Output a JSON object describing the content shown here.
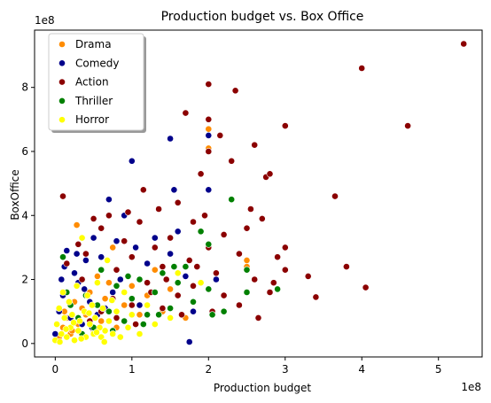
{
  "chart_data": {
    "type": "scatter",
    "title": "Production budget vs. Box Office",
    "xlabel": "Production budget",
    "ylabel": "BoxOffice",
    "x_offset_text": "1e8",
    "y_offset_text": "1e8",
    "xlim": [
      -0.27,
      5.57
    ],
    "ylim": [
      -0.42,
      9.79
    ],
    "x_ticks": [
      0,
      1,
      2,
      3,
      4,
      5
    ],
    "y_ticks": [
      0,
      2,
      4,
      6,
      8
    ],
    "x_tick_labels": [
      "0",
      "1",
      "2",
      "3",
      "4",
      "5"
    ],
    "y_tick_labels": [
      "0",
      "2",
      "4",
      "6",
      "8"
    ],
    "grid": false,
    "legend_position": "upper-left",
    "series": [
      {
        "name": "Drama",
        "color": "#ff8c00",
        "points": [
          [
            0.05,
            0.2
          ],
          [
            0.1,
            0.5
          ],
          [
            0.15,
            0.8
          ],
          [
            0.2,
            0.3
          ],
          [
            0.25,
            1.3
          ],
          [
            0.28,
            3.7
          ],
          [
            0.3,
            0.6
          ],
          [
            0.35,
            1.1
          ],
          [
            0.4,
            0.9
          ],
          [
            0.45,
            1.6
          ],
          [
            0.5,
            0.4
          ],
          [
            0.55,
            2.1
          ],
          [
            0.6,
            0.7
          ],
          [
            0.65,
            1.4
          ],
          [
            0.7,
            1.9
          ],
          [
            0.75,
            3.0
          ],
          [
            0.8,
            0.5
          ],
          [
            0.9,
            1.2
          ],
          [
            1.0,
            1.8
          ],
          [
            1.1,
            0.9
          ],
          [
            1.2,
            1.5
          ],
          [
            1.3,
            2.3
          ],
          [
            1.4,
            1.0
          ],
          [
            1.5,
            1.7
          ],
          [
            1.7,
            0.8
          ],
          [
            1.8,
            1.3
          ],
          [
            2.0,
            6.7
          ],
          [
            2.0,
            6.1
          ],
          [
            2.5,
            2.6
          ],
          [
            2.5,
            2.4
          ],
          [
            0.12,
            1.0
          ],
          [
            0.22,
            0.4
          ]
        ]
      },
      {
        "name": "Comedy",
        "color": "#00008b",
        "points": [
          [
            0.0,
            0.3
          ],
          [
            0.05,
            1.0
          ],
          [
            0.1,
            1.5
          ],
          [
            0.12,
            2.4
          ],
          [
            0.15,
            2.9
          ],
          [
            0.2,
            0.8
          ],
          [
            0.25,
            2.2
          ],
          [
            0.3,
            1.9
          ],
          [
            0.35,
            0.6
          ],
          [
            0.4,
            2.6
          ],
          [
            0.45,
            1.3
          ],
          [
            0.5,
            3.3
          ],
          [
            0.55,
            0.9
          ],
          [
            0.6,
            2.7
          ],
          [
            0.7,
            4.5
          ],
          [
            0.75,
            1.6
          ],
          [
            0.8,
            3.2
          ],
          [
            0.85,
            2.0
          ],
          [
            0.9,
            4.0
          ],
          [
            1.0,
            5.7
          ],
          [
            1.05,
            3.0
          ],
          [
            1.1,
            1.2
          ],
          [
            1.2,
            2.5
          ],
          [
            1.3,
            3.3
          ],
          [
            1.5,
            6.4
          ],
          [
            1.5,
            2.8
          ],
          [
            1.55,
            4.8
          ],
          [
            1.6,
            3.5
          ],
          [
            1.7,
            2.1
          ],
          [
            1.75,
            0.05
          ],
          [
            1.8,
            1.0
          ],
          [
            2.0,
            6.5
          ],
          [
            2.0,
            4.8
          ],
          [
            2.1,
            2.0
          ],
          [
            0.08,
            2.0
          ],
          [
            0.18,
            1.3
          ],
          [
            0.28,
            2.8
          ],
          [
            0.38,
            1.7
          ],
          [
            0.48,
            0.5
          ],
          [
            0.65,
            1.1
          ]
        ]
      },
      {
        "name": "Action",
        "color": "#8b0000",
        "points": [
          [
            0.1,
            4.6
          ],
          [
            0.15,
            2.5
          ],
          [
            0.3,
            3.1
          ],
          [
            0.35,
            2.0
          ],
          [
            0.4,
            2.8
          ],
          [
            0.5,
            3.9
          ],
          [
            0.6,
            3.6
          ],
          [
            0.7,
            4.0
          ],
          [
            0.8,
            2.3
          ],
          [
            0.9,
            3.2
          ],
          [
            0.95,
            4.1
          ],
          [
            1.0,
            2.7
          ],
          [
            1.1,
            3.8
          ],
          [
            1.15,
            4.8
          ],
          [
            1.2,
            1.9
          ],
          [
            1.3,
            3.0
          ],
          [
            1.35,
            4.2
          ],
          [
            1.4,
            2.4
          ],
          [
            1.5,
            3.3
          ],
          [
            1.6,
            4.4
          ],
          [
            1.7,
            7.2
          ],
          [
            1.75,
            2.6
          ],
          [
            1.8,
            3.8
          ],
          [
            1.9,
            5.3
          ],
          [
            1.95,
            4.0
          ],
          [
            2.0,
            8.1
          ],
          [
            2.0,
            7.0
          ],
          [
            2.0,
            6.0
          ],
          [
            2.0,
            3.0
          ],
          [
            2.1,
            2.2
          ],
          [
            2.15,
            6.5
          ],
          [
            2.2,
            3.4
          ],
          [
            2.3,
            5.7
          ],
          [
            2.35,
            7.9
          ],
          [
            2.4,
            2.8
          ],
          [
            2.5,
            3.6
          ],
          [
            2.55,
            4.2
          ],
          [
            2.6,
            2.0
          ],
          [
            2.6,
            6.2
          ],
          [
            2.65,
            0.8
          ],
          [
            2.7,
            3.9
          ],
          [
            2.75,
            5.2
          ],
          [
            2.8,
            5.3
          ],
          [
            2.85,
            1.9
          ],
          [
            2.9,
            2.7
          ],
          [
            3.0,
            6.8
          ],
          [
            3.0,
            3.0
          ],
          [
            3.0,
            2.3
          ],
          [
            3.3,
            2.1
          ],
          [
            3.4,
            1.45
          ],
          [
            3.65,
            4.6
          ],
          [
            3.8,
            2.4
          ],
          [
            4.0,
            8.6
          ],
          [
            4.05,
            1.75
          ],
          [
            4.6,
            6.8
          ],
          [
            5.33,
            9.36
          ],
          [
            0.6,
            1.0
          ],
          [
            0.8,
            0.8
          ],
          [
            1.0,
            1.2
          ],
          [
            1.2,
            0.9
          ],
          [
            1.4,
            1.1
          ],
          [
            1.6,
            1.5
          ],
          [
            1.8,
            1.8
          ],
          [
            2.2,
            1.5
          ],
          [
            2.4,
            1.2
          ],
          [
            2.8,
            1.6
          ],
          [
            0.45,
            0.7
          ],
          [
            0.75,
            1.4
          ],
          [
            1.05,
            0.6
          ],
          [
            1.25,
            1.6
          ],
          [
            1.45,
            2.0
          ],
          [
            1.65,
            0.9
          ],
          [
            1.85,
            2.4
          ],
          [
            2.05,
            1.0
          ]
        ]
      },
      {
        "name": "Thriller",
        "color": "#008000",
        "points": [
          [
            0.1,
            2.7
          ],
          [
            0.2,
            1.2
          ],
          [
            0.3,
            0.8
          ],
          [
            0.4,
            1.5
          ],
          [
            0.5,
            0.5
          ],
          [
            0.6,
            2.3
          ],
          [
            0.7,
            1.0
          ],
          [
            0.8,
            1.8
          ],
          [
            0.9,
            0.7
          ],
          [
            1.0,
            1.4
          ],
          [
            1.1,
            2.0
          ],
          [
            1.2,
            0.9
          ],
          [
            1.3,
            1.6
          ],
          [
            1.4,
            2.2
          ],
          [
            1.5,
            1.1
          ],
          [
            1.6,
            1.9
          ],
          [
            1.7,
            2.4
          ],
          [
            1.8,
            1.3
          ],
          [
            1.9,
            3.5
          ],
          [
            2.0,
            3.1
          ],
          [
            2.0,
            1.7
          ],
          [
            2.2,
            1.0
          ],
          [
            2.3,
            4.5
          ],
          [
            2.5,
            2.3
          ],
          [
            2.5,
            1.6
          ],
          [
            2.9,
            1.7
          ],
          [
            0.15,
            1.6
          ],
          [
            0.35,
            0.3
          ],
          [
            0.55,
            1.2
          ],
          [
            0.75,
            0.4
          ],
          [
            0.95,
            2.1
          ],
          [
            1.15,
            0.6
          ],
          [
            1.35,
            0.9
          ],
          [
            1.55,
            2.4
          ],
          [
            2.05,
            0.9
          ]
        ]
      },
      {
        "name": "Horror",
        "color": "#ffff00",
        "points": [
          [
            0.0,
            0.1
          ],
          [
            0.02,
            0.6
          ],
          [
            0.05,
            1.1
          ],
          [
            0.08,
            0.3
          ],
          [
            0.1,
            1.6
          ],
          [
            0.12,
            0.8
          ],
          [
            0.15,
            0.2
          ],
          [
            0.18,
            1.3
          ],
          [
            0.2,
            0.5
          ],
          [
            0.22,
            0.9
          ],
          [
            0.25,
            0.1
          ],
          [
            0.28,
            1.8
          ],
          [
            0.3,
            0.4
          ],
          [
            0.32,
            0.7
          ],
          [
            0.35,
            3.3
          ],
          [
            0.38,
            1.0
          ],
          [
            0.4,
            0.2
          ],
          [
            0.42,
            1.5
          ],
          [
            0.45,
            0.6
          ],
          [
            0.48,
            1.2
          ],
          [
            0.5,
            0.3
          ],
          [
            0.52,
            0.8
          ],
          [
            0.55,
            1.9
          ],
          [
            0.58,
            0.5
          ],
          [
            0.6,
            0.2
          ],
          [
            0.62,
            1.1
          ],
          [
            0.65,
            0.4
          ],
          [
            0.68,
            2.6
          ],
          [
            0.7,
            0.7
          ],
          [
            0.75,
            0.3
          ],
          [
            0.8,
            1.0
          ],
          [
            0.85,
            0.2
          ],
          [
            0.9,
            1.6
          ],
          [
            0.95,
            0.5
          ],
          [
            1.0,
            0.9
          ],
          [
            1.1,
            0.3
          ],
          [
            1.2,
            1.2
          ],
          [
            1.3,
            0.6
          ],
          [
            1.5,
            0.8
          ],
          [
            1.6,
            2.2
          ],
          [
            1.9,
            1.9
          ],
          [
            0.06,
            0.05
          ],
          [
            0.14,
            0.45
          ],
          [
            0.24,
            0.65
          ],
          [
            0.34,
            0.15
          ],
          [
            0.44,
            0.95
          ],
          [
            0.54,
            0.35
          ],
          [
            0.64,
            0.05
          ],
          [
            0.74,
            1.35
          ]
        ]
      }
    ]
  }
}
